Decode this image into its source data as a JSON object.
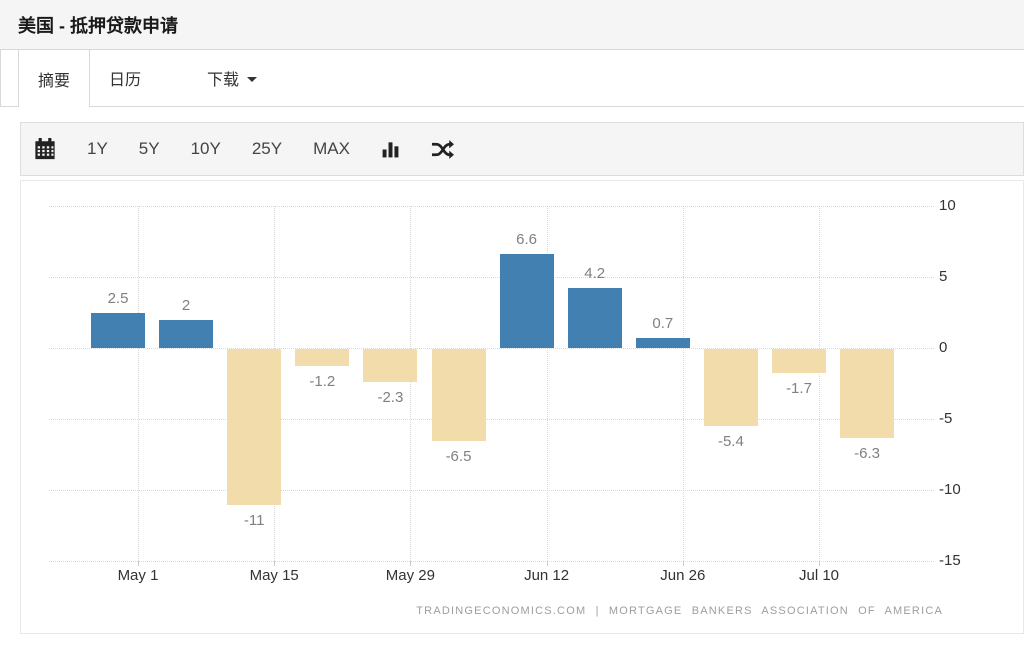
{
  "header": {
    "title": "美国 - 抵押贷款申请"
  },
  "tabs": {
    "summary": "摘要",
    "calendar": "日历",
    "download": "下载"
  },
  "toolbar": {
    "ranges": [
      "1Y",
      "5Y",
      "10Y",
      "25Y",
      "MAX"
    ],
    "icons": [
      "calendar-icon",
      "bar-chart-icon",
      "shuffle-icon"
    ]
  },
  "chart_data": {
    "type": "bar",
    "title": "",
    "xlabel": "",
    "ylabel": "",
    "values": [
      2.5,
      2,
      -11,
      -1.2,
      -2.3,
      -6.5,
      6.6,
      4.2,
      0.7,
      -5.4,
      -1.7,
      -6.3
    ],
    "bar_labels": [
      "2.5",
      "2",
      "-11",
      "-1.2",
      "-2.3",
      "-6.5",
      "6.6",
      "4.2",
      "0.7",
      "-5.4",
      "-1.7",
      "-6.3"
    ],
    "xticks": [
      "May 1",
      "May 15",
      "May 29",
      "Jun 12",
      "Jun 26",
      "Jul 10"
    ],
    "yticks": [
      10,
      5,
      0,
      -5,
      -10,
      -15
    ],
    "ylim": [
      -15,
      10
    ],
    "grid": "dotted",
    "legend": "none",
    "colors": {
      "positive": "#4180b1",
      "negative": "#f2dcab",
      "label_text": "#808080",
      "axis_text": "#333333",
      "gridline": "#d8d8d8"
    },
    "attribution": "TRADINGECONOMICS.COM | MORTGAGE BANKERS ASSOCIATION OF AMERICA"
  }
}
